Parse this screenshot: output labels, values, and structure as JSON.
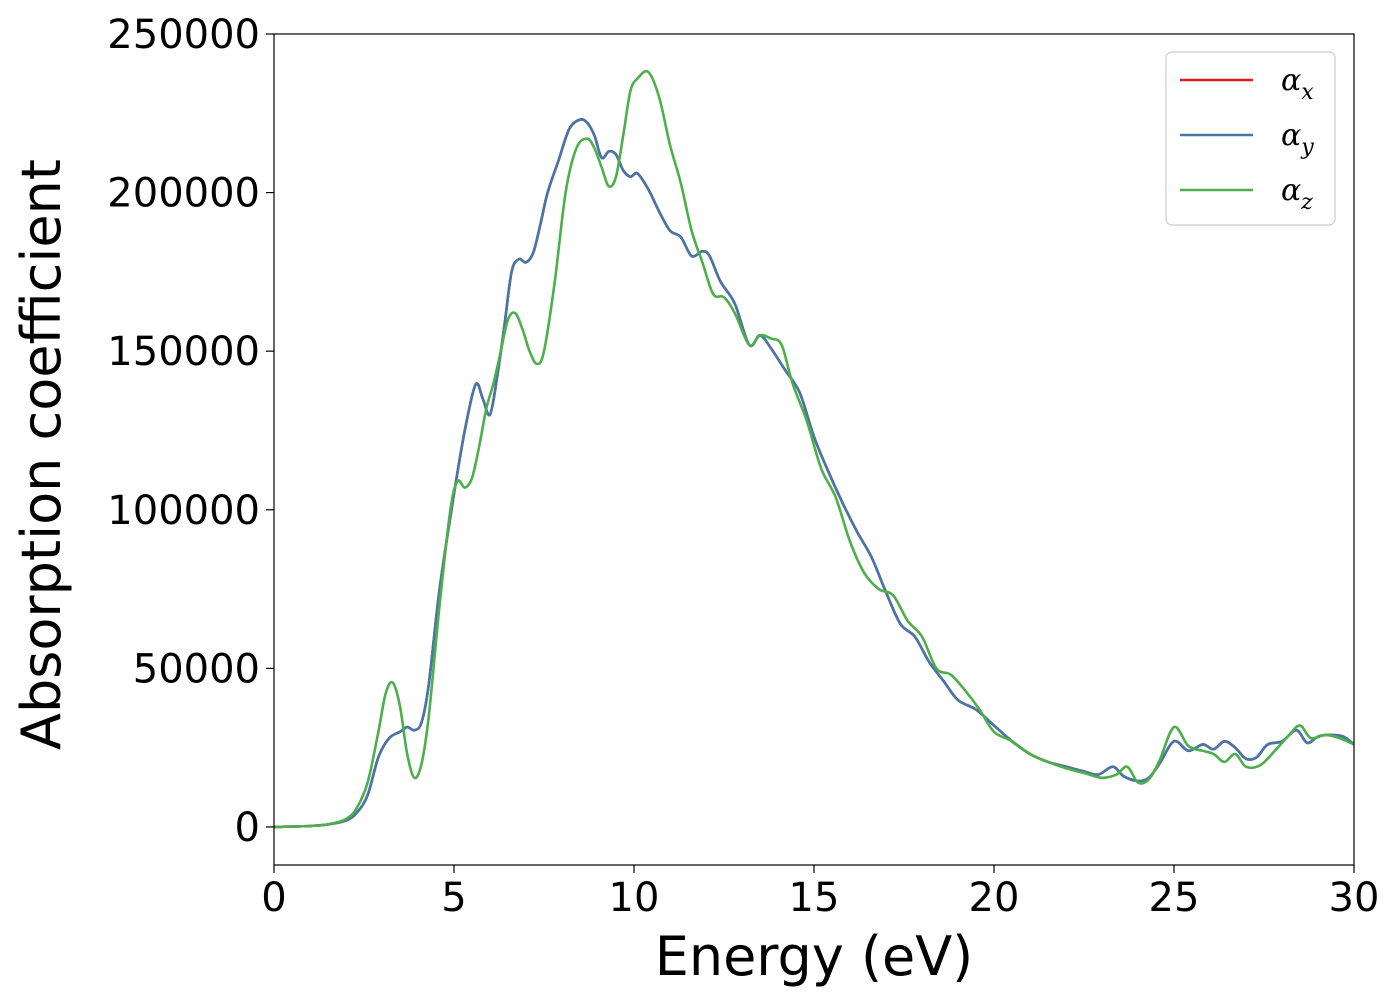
{
  "chart_data": {
    "type": "line",
    "xlabel": "Energy (eV)",
    "ylabel": "Absorption coefficient",
    "xlim": [
      0,
      30
    ],
    "ylim": [
      -12000,
      250000
    ],
    "x_ticks": [
      0,
      5,
      10,
      15,
      20,
      25,
      30
    ],
    "x_tick_labels": [
      "0",
      "5",
      "10",
      "15",
      "20",
      "25",
      "30"
    ],
    "y_ticks": [
      0,
      50000,
      100000,
      150000,
      200000,
      250000
    ],
    "y_tick_labels": [
      "0",
      "50000",
      "100000",
      "150000",
      "200000",
      "250000"
    ],
    "grid": false,
    "legend_position": "top-right",
    "series": [
      {
        "name": "αx",
        "legend_base": "α",
        "legend_sub": "x",
        "color": "#e41a1c",
        "x": [
          0,
          1,
          1.5,
          2,
          2.3,
          2.6,
          2.9,
          3.2,
          3.5,
          3.7,
          3.9,
          4.1,
          4.3,
          4.6,
          5.0,
          5.3,
          5.6,
          5.8,
          6.0,
          6.2,
          6.4,
          6.6,
          6.8,
          7.0,
          7.2,
          7.4,
          7.6,
          7.9,
          8.2,
          8.5,
          8.7,
          8.9,
          9.1,
          9.3,
          9.5,
          9.7,
          9.9,
          10.1,
          10.4,
          10.7,
          11.0,
          11.3,
          11.6,
          11.9,
          12.1,
          12.4,
          12.8,
          13.2,
          13.5,
          13.8,
          14.2,
          14.6,
          15.0,
          15.4,
          15.8,
          16.2,
          16.6,
          17.0,
          17.4,
          17.8,
          18.2,
          18.6,
          19.0,
          19.5,
          20.0,
          20.5,
          21.0,
          21.5,
          22.0,
          22.5,
          22.9,
          23.3,
          23.6,
          24.0,
          24.3,
          24.6,
          25.0,
          25.4,
          25.8,
          26.1,
          26.4,
          26.7,
          27.0,
          27.3,
          27.6,
          28.0,
          28.4,
          28.7,
          29.0,
          29.3,
          29.7,
          30.0
        ],
        "values": [
          0,
          300,
          800,
          2000,
          4500,
          10000,
          22000,
          28000,
          30000,
          31500,
          30500,
          33000,
          45000,
          75000,
          105000,
          125000,
          139500,
          135000,
          130000,
          142000,
          158000,
          175000,
          179000,
          178000,
          181000,
          190000,
          200000,
          210000,
          220000,
          223000,
          222000,
          218000,
          211000,
          213000,
          212000,
          207000,
          205000,
          206000,
          201000,
          194000,
          188000,
          186000,
          180000,
          181500,
          180000,
          172000,
          165000,
          152000,
          155000,
          151000,
          144000,
          137000,
          123000,
          112000,
          102000,
          93000,
          85000,
          74000,
          64000,
          60000,
          52000,
          46000,
          40000,
          37000,
          32000,
          27000,
          23000,
          20500,
          19000,
          17500,
          16500,
          19000,
          16000,
          14500,
          15500,
          20000,
          27000,
          24000,
          26000,
          24500,
          27000,
          25000,
          21500,
          22000,
          26000,
          27000,
          30500,
          26500,
          28500,
          29000,
          28500,
          26000
        ]
      },
      {
        "name": "αy",
        "legend_base": "α",
        "legend_sub": "y",
        "color": "#4477aa",
        "x": [
          0,
          1,
          1.5,
          2,
          2.3,
          2.6,
          2.9,
          3.2,
          3.5,
          3.7,
          3.9,
          4.1,
          4.3,
          4.6,
          5.0,
          5.3,
          5.6,
          5.8,
          6.0,
          6.2,
          6.4,
          6.6,
          6.8,
          7.0,
          7.2,
          7.4,
          7.6,
          7.9,
          8.2,
          8.5,
          8.7,
          8.9,
          9.1,
          9.3,
          9.5,
          9.7,
          9.9,
          10.1,
          10.4,
          10.7,
          11.0,
          11.3,
          11.6,
          11.9,
          12.1,
          12.4,
          12.8,
          13.2,
          13.5,
          13.8,
          14.2,
          14.6,
          15.0,
          15.4,
          15.8,
          16.2,
          16.6,
          17.0,
          17.4,
          17.8,
          18.2,
          18.6,
          19.0,
          19.5,
          20.0,
          20.5,
          21.0,
          21.5,
          22.0,
          22.5,
          22.9,
          23.3,
          23.6,
          24.0,
          24.3,
          24.6,
          25.0,
          25.4,
          25.8,
          26.1,
          26.4,
          26.7,
          27.0,
          27.3,
          27.6,
          28.0,
          28.4,
          28.7,
          29.0,
          29.3,
          29.7,
          30.0
        ],
        "values": [
          0,
          300,
          800,
          2000,
          4500,
          10000,
          22000,
          28000,
          30000,
          31500,
          30500,
          33000,
          45000,
          75000,
          105000,
          125000,
          139500,
          135000,
          130000,
          142000,
          158000,
          175000,
          179000,
          178000,
          181000,
          190000,
          200000,
          210000,
          220000,
          223000,
          222000,
          218000,
          211000,
          213000,
          212000,
          207000,
          205000,
          206000,
          201000,
          194000,
          188000,
          186000,
          180000,
          181500,
          180000,
          172000,
          165000,
          152000,
          155000,
          151000,
          144000,
          137000,
          123000,
          112000,
          102000,
          93000,
          85000,
          74000,
          64000,
          60000,
          52000,
          46000,
          40000,
          37000,
          32000,
          27000,
          23000,
          20500,
          19000,
          17500,
          16500,
          19000,
          16000,
          14500,
          15500,
          20000,
          27000,
          24000,
          26000,
          24500,
          27000,
          25000,
          21500,
          22000,
          26000,
          27000,
          30500,
          26500,
          28500,
          29000,
          28500,
          26000
        ]
      },
      {
        "name": "αz",
        "legend_base": "α",
        "legend_sub": "z",
        "color": "#4daf4a",
        "x": [
          0,
          1,
          1.5,
          2,
          2.3,
          2.6,
          2.9,
          3.1,
          3.3,
          3.5,
          3.7,
          3.9,
          4.1,
          4.3,
          4.6,
          4.9,
          5.1,
          5.3,
          5.5,
          5.7,
          5.9,
          6.1,
          6.3,
          6.5,
          6.7,
          6.9,
          7.1,
          7.3,
          7.5,
          7.8,
          8.1,
          8.4,
          8.7,
          8.9,
          9.1,
          9.3,
          9.5,
          9.7,
          9.9,
          10.1,
          10.4,
          10.7,
          11.0,
          11.3,
          11.6,
          11.9,
          12.2,
          12.5,
          12.8,
          13.2,
          13.5,
          13.8,
          14.1,
          14.4,
          14.8,
          15.2,
          15.6,
          16.0,
          16.4,
          16.8,
          17.2,
          17.6,
          18.0,
          18.4,
          18.8,
          19.2,
          19.6,
          20.0,
          20.5,
          21.0,
          21.5,
          22.0,
          22.5,
          23.0,
          23.4,
          23.7,
          24.0,
          24.3,
          24.6,
          25.0,
          25.4,
          25.8,
          26.1,
          26.4,
          26.7,
          27.0,
          27.4,
          27.8,
          28.2,
          28.5,
          28.8,
          29.2,
          29.6,
          30.0
        ],
        "values": [
          0,
          300,
          800,
          2500,
          6000,
          14000,
          30000,
          42000,
          45500,
          38000,
          23000,
          15500,
          20000,
          35000,
          70000,
          100000,
          109000,
          107000,
          110000,
          120000,
          132000,
          140000,
          150000,
          160000,
          162000,
          157000,
          150000,
          146000,
          150000,
          172000,
          200000,
          214000,
          217000,
          214000,
          208000,
          202000,
          205000,
          218000,
          232000,
          236000,
          238000,
          230000,
          215000,
          203000,
          188000,
          178000,
          168000,
          167000,
          162000,
          152000,
          155000,
          154000,
          152000,
          140000,
          128000,
          113000,
          104000,
          90000,
          80000,
          75000,
          73000,
          65000,
          60000,
          50000,
          48000,
          43000,
          37000,
          30000,
          27000,
          23000,
          20500,
          18500,
          17000,
          15500,
          16500,
          19000,
          14000,
          15000,
          21000,
          31500,
          25500,
          24000,
          23000,
          20500,
          23000,
          19000,
          19500,
          24000,
          29000,
          32000,
          28000,
          29000,
          28000,
          26000
        ]
      }
    ]
  }
}
